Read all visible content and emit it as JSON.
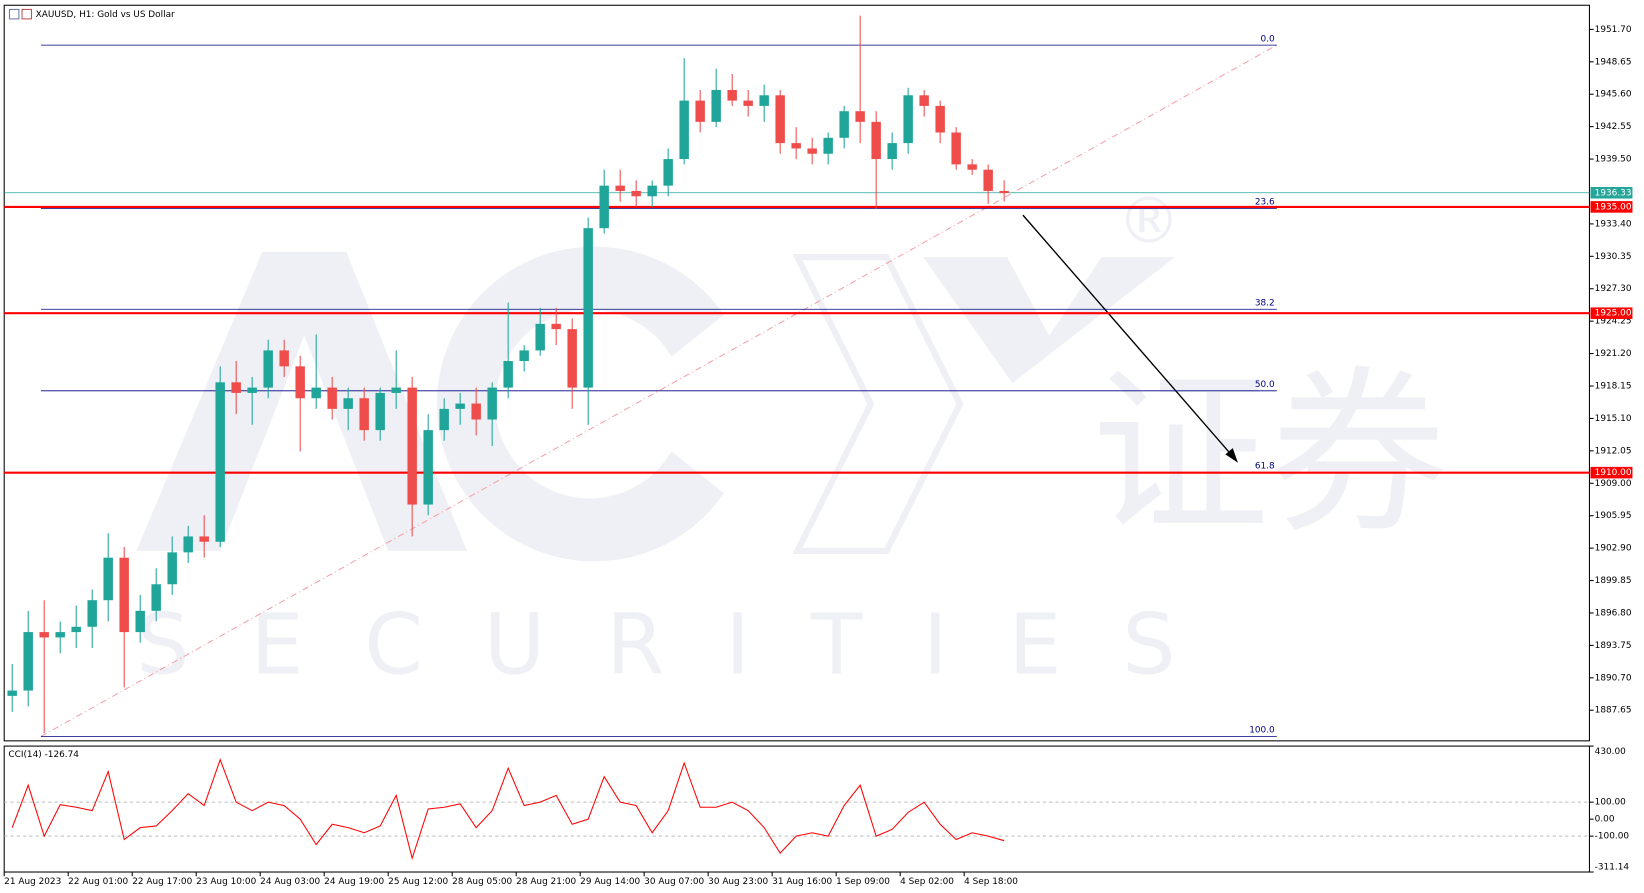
{
  "chart_data": [
    {
      "type": "candlestick",
      "title": "XAUUSD, H1:  Gold vs US Dollar",
      "categories": [
        "21 Aug 2023",
        null,
        null,
        null,
        "22 Aug 01:00",
        null,
        null,
        null,
        "22 Aug 17:00",
        null,
        null,
        null,
        "23 Aug 10:00",
        null,
        null,
        null,
        "24 Aug 03:00",
        null,
        null,
        null,
        "24 Aug 19:00",
        null,
        null,
        null,
        "25 Aug 12:00",
        null,
        null,
        null,
        "28 Aug 05:00",
        null,
        null,
        null,
        "28 Aug 21:00",
        null,
        null,
        null,
        "29 Aug 14:00",
        null,
        null,
        null,
        "30 Aug 07:00",
        null,
        null,
        null,
        "30 Aug 23:00",
        null,
        null,
        null,
        "31 Aug 16:00",
        null,
        null,
        null,
        "1 Sep 09:00",
        null,
        null,
        null,
        "4 Sep 02:00",
        null,
        null,
        null,
        "4 Sep 18:00",
        null,
        null
      ],
      "open": [
        1889,
        1889.5,
        1895,
        1894.5,
        1895,
        1895.5,
        1898,
        1902,
        1895,
        1897,
        1899.5,
        1902.5,
        1904,
        1903.5,
        1918.5,
        1917.5,
        1918,
        1921.5,
        1920,
        1917,
        1918,
        1916,
        1917,
        1914,
        1917.5,
        1918,
        1907,
        1914,
        1916,
        1916.5,
        1915,
        1918,
        1920.5,
        1921.5,
        1924,
        1923.5,
        1918,
        1933,
        1937,
        1936.5,
        1936,
        1937,
        1939.5,
        1945,
        1943,
        1946,
        1945,
        1944.5,
        1945.5,
        1941,
        1940.5,
        1940,
        1941.5,
        1944,
        1943,
        1939.5,
        1941,
        1945.5,
        1944.5,
        1942,
        1939,
        1938.5,
        1936.5
      ],
      "high": [
        1892,
        1897,
        1898,
        1896,
        1897.5,
        1899,
        1904.3,
        1903,
        1898.5,
        1901,
        1904,
        1905,
        1906,
        1920,
        1920.5,
        1919,
        1922.5,
        1922.5,
        1921,
        1923,
        1919,
        1918,
        1918,
        1918,
        1921.5,
        1919,
        1915.5,
        1917,
        1917.5,
        1918,
        1918.5,
        1926,
        1922,
        1925.5,
        1925.5,
        1924.5,
        1934,
        1938.5,
        1938.5,
        1937.5,
        1937.5,
        1940.5,
        1949,
        1946,
        1948,
        1947.5,
        1946,
        1946.5,
        1946,
        1942.5,
        1941.5,
        1942,
        1944.5,
        1953,
        1944,
        1942,
        1946.2,
        1946,
        1945,
        1942.5,
        1939.5,
        1939,
        1937.5
      ],
      "low": [
        1887.5,
        1888,
        1885.5,
        1893,
        1893.5,
        1893.5,
        1896,
        1889.8,
        1894,
        1896,
        1898.5,
        1901.5,
        1902,
        1903,
        1915.5,
        1914.5,
        1917,
        1919,
        1912,
        1916,
        1915,
        1914,
        1913,
        1913,
        1916,
        1904,
        1906,
        1913,
        1914.5,
        1913.5,
        1912.5,
        1917,
        1919.5,
        1921,
        1922,
        1916,
        1914.5,
        1932.5,
        1935.5,
        1935,
        1935,
        1936,
        1939,
        1942,
        1942.5,
        1944.5,
        1943.5,
        1943,
        1940,
        1939.5,
        1939,
        1939,
        1940.5,
        1941,
        1934.8,
        1938.5,
        1940,
        1943.5,
        1941,
        1938.5,
        1938,
        1935.3,
        1935.5
      ],
      "close": [
        1889.5,
        1895,
        1894.5,
        1895,
        1895.5,
        1898,
        1902,
        1895,
        1897,
        1899.5,
        1902.5,
        1904,
        1903.5,
        1918.5,
        1917.5,
        1918,
        1921.5,
        1920,
        1917,
        1918,
        1916,
        1917,
        1914,
        1917.5,
        1918,
        1907,
        1914,
        1916,
        1916.5,
        1915,
        1918,
        1920.5,
        1921.5,
        1924,
        1923.5,
        1918,
        1933,
        1937,
        1936.5,
        1936,
        1937,
        1939.5,
        1945,
        1943,
        1946,
        1945,
        1944.5,
        1945.5,
        1941,
        1940.5,
        1940,
        1941.5,
        1944,
        1943,
        1939.5,
        1941,
        1945.5,
        1944.5,
        1942,
        1939,
        1938.5,
        1936.5,
        1936.3
      ],
      "up_color": "#1fa59a",
      "down_color": "#ef4c4c",
      "ylim": [
        1884.77,
        1953.97
      ],
      "yticks": [
        {
          "value": 1951.7,
          "label": "1951.70"
        },
        {
          "value": 1948.65,
          "label": "1948.65"
        },
        {
          "value": 1945.6,
          "label": "1945.60"
        },
        {
          "value": 1942.55,
          "label": "1942.55"
        },
        {
          "value": 1939.5,
          "label": "1939.50"
        },
        {
          "value": 1933.4,
          "label": "1933.40"
        },
        {
          "value": 1930.35,
          "label": "1930.35"
        },
        {
          "value": 1927.3,
          "label": "1927.30"
        },
        {
          "value": 1924.25,
          "label": "1924.25"
        },
        {
          "value": 1921.2,
          "label": "1921.20"
        },
        {
          "value": 1918.15,
          "label": "1918.15"
        },
        {
          "value": 1915.1,
          "label": "1915.10"
        },
        {
          "value": 1912.05,
          "label": "1912.05"
        },
        {
          "value": 1909,
          "label": "1909.00"
        },
        {
          "value": 1905.95,
          "label": "1905.95"
        },
        {
          "value": 1902.9,
          "label": "1902.90"
        },
        {
          "value": 1899.85,
          "label": "1899.85"
        },
        {
          "value": 1896.8,
          "label": "1896.80"
        },
        {
          "value": 1893.75,
          "label": "1893.75"
        },
        {
          "value": 1890.7,
          "label": "1890.70"
        },
        {
          "value": 1887.65,
          "label": "1887.65"
        }
      ],
      "current_price": {
        "value": 1936.33,
        "label": "1936.33",
        "color": "#26a69a"
      },
      "levels": [
        {
          "value": 1935,
          "label": "1935.00",
          "color": "#ff0000"
        },
        {
          "value": 1925,
          "label": "1925.00",
          "color": "#ff0000"
        },
        {
          "value": 1910,
          "label": "1910.00",
          "color": "#ff0000"
        }
      ],
      "fibonacci": {
        "color": "#000080",
        "levels": [
          {
            "value": 1950.22,
            "label": "0.0"
          },
          {
            "value": 1934.87,
            "label": "23.6"
          },
          {
            "value": 1925.37,
            "label": "38.2"
          },
          {
            "value": 1917.7,
            "label": "50.0"
          },
          {
            "value": 1910.03,
            "label": "61.8"
          },
          {
            "value": 1885.18,
            "label": "100.0"
          }
        ]
      },
      "watermark": {
        "brand": "SECURITIES",
        "chinese": "证券",
        "mark": "®"
      }
    },
    {
      "type": "line",
      "title": "CCI(14) -126.74",
      "color": "#ff0000",
      "values": [
        -50,
        200,
        -100,
        85,
        70,
        50,
        280,
        -120,
        -50,
        -40,
        50,
        150,
        80,
        350,
        100,
        50,
        100,
        80,
        0,
        -150,
        -30,
        -50,
        -80,
        -40,
        140,
        -230,
        60,
        70,
        90,
        -50,
        50,
        300,
        80,
        100,
        140,
        -30,
        0,
        250,
        100,
        80,
        -80,
        50,
        330,
        70,
        70,
        100,
        50,
        -50,
        -200,
        -100,
        -80,
        -100,
        80,
        200,
        -100,
        -60,
        40,
        100,
        -30,
        -120,
        -80,
        -100,
        -126.74
      ],
      "ylim": [
        -311.14,
        430
      ],
      "yticks": [
        {
          "value": 430,
          "label": "430.00"
        },
        {
          "value": 100,
          "label": "100.00"
        },
        {
          "value": 0,
          "label": "0.00"
        },
        {
          "value": -100,
          "label": "-100.00"
        },
        {
          "value": -311.14,
          "label": "-311.14"
        }
      ],
      "grid_levels": [
        100,
        -100
      ]
    }
  ]
}
